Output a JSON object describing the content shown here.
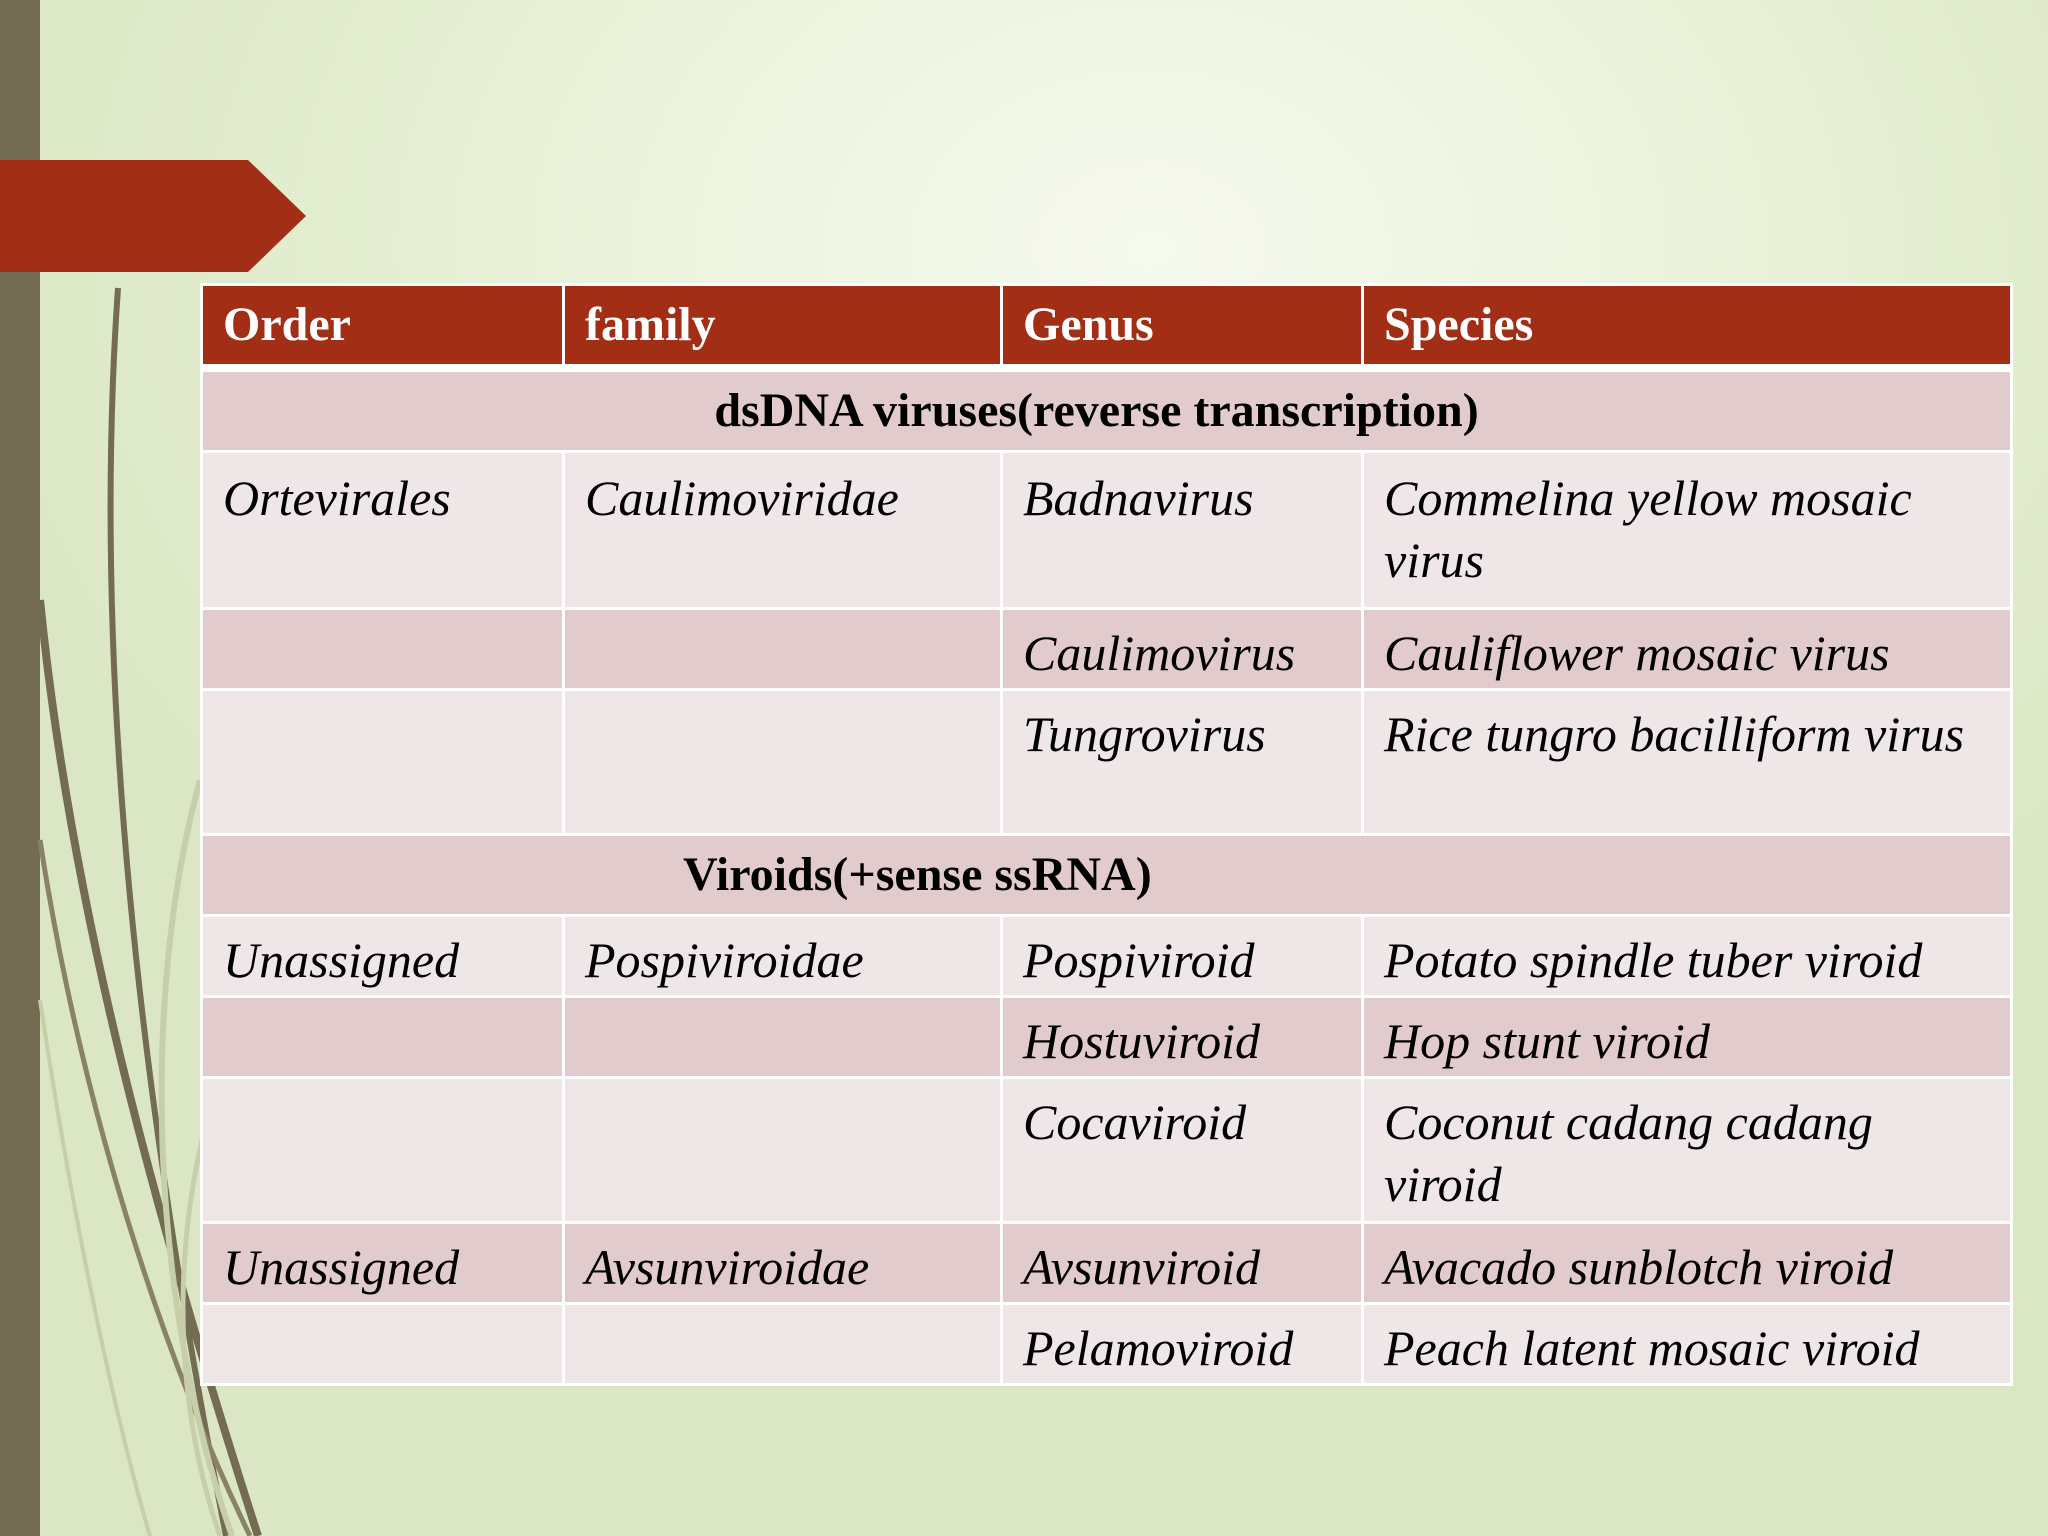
{
  "header": {
    "col_order": "Order",
    "col_family": "family",
    "col_genus": "Genus",
    "col_species": "Species"
  },
  "sections": {
    "dsdna": "dsDNA viruses(reverse transcription)",
    "viroids": "Viroids(+sense ssRNA)"
  },
  "rows": [
    {
      "order": "Ortevirales",
      "family": "Caulimoviridae",
      "genus": "Badnavirus",
      "species": "Commelina yellow mosaic virus"
    },
    {
      "order": "",
      "family": "",
      "genus": "Caulimovirus",
      "species": "Cauliflower mosaic virus"
    },
    {
      "order": "",
      "family": "",
      "genus": "Tungrovirus",
      "species": "Rice tungro bacilliform virus"
    },
    {
      "order": "Unassigned",
      "family": "Pospiviroidae",
      "genus": "Pospiviroid",
      "species": "Potato spindle tuber viroid"
    },
    {
      "order": "",
      "family": "",
      "genus": "Hostuviroid",
      "species": "Hop stunt viroid"
    },
    {
      "order": "",
      "family": "",
      "genus": "Cocaviroid",
      "species": "Coconut cadang cadang viroid"
    },
    {
      "order": "Unassigned",
      "family": "Avsunviroidae",
      "genus": "Avsunviroid",
      "species": "Avacado sunblotch viroid"
    },
    {
      "order": "",
      "family": "",
      "genus": "Pelamoviroid",
      "species": "Peach latent mosaic viroid"
    }
  ],
  "colors": {
    "accent_red": "#a32e16",
    "left_bar": "#736b52",
    "row_dark": "#e2cbcd",
    "row_light": "#efe7e7"
  }
}
